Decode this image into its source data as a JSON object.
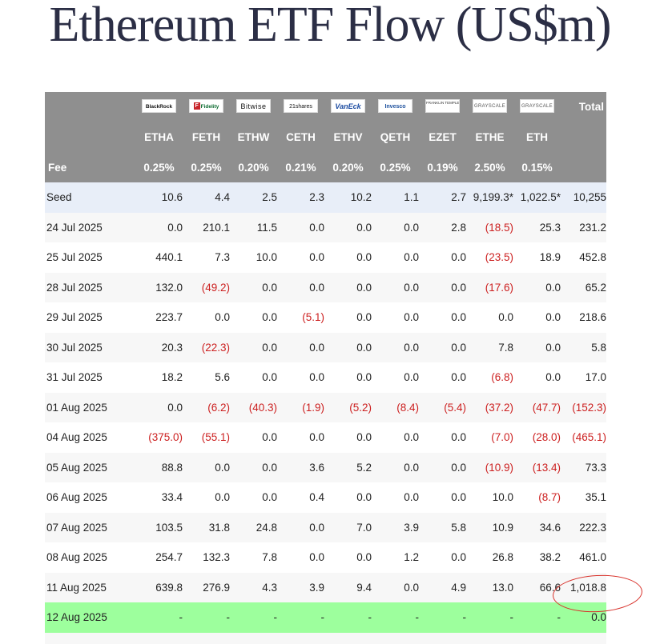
{
  "title": "Ethereum ETF Flow (US$m)",
  "header": {
    "total_label": "Total",
    "fee_label": "Fee",
    "issuers": [
      {
        "logo": "BlackRock",
        "ticker": "ETHA",
        "fee": "0.25%"
      },
      {
        "logo": "Fidelity",
        "ticker": "FETH",
        "fee": "0.25%"
      },
      {
        "logo": "Bitwise",
        "ticker": "ETHW",
        "fee": "0.20%"
      },
      {
        "logo": "21shares",
        "ticker": "CETH",
        "fee": "0.21%"
      },
      {
        "logo": "VanEck",
        "ticker": "ETHV",
        "fee": "0.20%"
      },
      {
        "logo": "Invesco",
        "ticker": "QETH",
        "fee": "0.25%"
      },
      {
        "logo": "FRANKLIN TEMPLETON",
        "ticker": "EZET",
        "fee": "0.19%"
      },
      {
        "logo": "GRAYSCALE",
        "ticker": "ETHE",
        "fee": "2.50%"
      },
      {
        "logo": "GRAYSCALE",
        "ticker": "ETH",
        "fee": "0.15%"
      }
    ]
  },
  "rows": [
    {
      "label": "Seed",
      "values": [
        "10.6",
        "4.4",
        "2.5",
        "2.3",
        "10.2",
        "1.1",
        "2.7",
        "9,199.3*",
        "1,022.5*",
        "10,255"
      ]
    },
    {
      "label": "24 Jul 2025",
      "values": [
        "0.0",
        "210.1",
        "11.5",
        "0.0",
        "0.0",
        "0.0",
        "2.8",
        "(18.5)",
        "25.3",
        "231.2"
      ]
    },
    {
      "label": "25 Jul 2025",
      "values": [
        "440.1",
        "7.3",
        "10.0",
        "0.0",
        "0.0",
        "0.0",
        "0.0",
        "(23.5)",
        "18.9",
        "452.8"
      ]
    },
    {
      "label": "28 Jul 2025",
      "values": [
        "132.0",
        "(49.2)",
        "0.0",
        "0.0",
        "0.0",
        "0.0",
        "0.0",
        "(17.6)",
        "0.0",
        "65.2"
      ]
    },
    {
      "label": "29 Jul 2025",
      "values": [
        "223.7",
        "0.0",
        "0.0",
        "(5.1)",
        "0.0",
        "0.0",
        "0.0",
        "0.0",
        "0.0",
        "218.6"
      ]
    },
    {
      "label": "30 Jul 2025",
      "values": [
        "20.3",
        "(22.3)",
        "0.0",
        "0.0",
        "0.0",
        "0.0",
        "0.0",
        "7.8",
        "0.0",
        "5.8"
      ]
    },
    {
      "label": "31 Jul 2025",
      "values": [
        "18.2",
        "5.6",
        "0.0",
        "0.0",
        "0.0",
        "0.0",
        "0.0",
        "(6.8)",
        "0.0",
        "17.0"
      ]
    },
    {
      "label": "01 Aug 2025",
      "values": [
        "0.0",
        "(6.2)",
        "(40.3)",
        "(1.9)",
        "(5.2)",
        "(8.4)",
        "(5.4)",
        "(37.2)",
        "(47.7)",
        "(152.3)"
      ]
    },
    {
      "label": "04 Aug 2025",
      "values": [
        "(375.0)",
        "(55.1)",
        "0.0",
        "0.0",
        "0.0",
        "0.0",
        "0.0",
        "(7.0)",
        "(28.0)",
        "(465.1)"
      ]
    },
    {
      "label": "05 Aug 2025",
      "values": [
        "88.8",
        "0.0",
        "0.0",
        "3.6",
        "5.2",
        "0.0",
        "0.0",
        "(10.9)",
        "(13.4)",
        "73.3"
      ]
    },
    {
      "label": "06 Aug 2025",
      "values": [
        "33.4",
        "0.0",
        "0.0",
        "0.4",
        "0.0",
        "0.0",
        "0.0",
        "10.0",
        "(8.7)",
        "35.1"
      ]
    },
    {
      "label": "07 Aug 2025",
      "values": [
        "103.5",
        "31.8",
        "24.8",
        "0.0",
        "7.0",
        "3.9",
        "5.8",
        "10.9",
        "34.6",
        "222.3"
      ]
    },
    {
      "label": "08 Aug 2025",
      "values": [
        "254.7",
        "132.3",
        "7.8",
        "0.0",
        "0.0",
        "1.2",
        "0.0",
        "26.8",
        "38.2",
        "461.0"
      ]
    },
    {
      "label": "11 Aug 2025",
      "values": [
        "639.8",
        "276.9",
        "4.3",
        "3.9",
        "9.4",
        "0.0",
        "4.9",
        "13.0",
        "66.6",
        "1,018.8"
      ]
    },
    {
      "label": "12 Aug 2025",
      "values": [
        "-",
        "-",
        "-",
        "-",
        "-",
        "-",
        "-",
        "-",
        "-",
        "0.0"
      ]
    }
  ],
  "colors": {
    "header_bg": "#8f8f8f",
    "negative": "#cc1f1f",
    "seed_row_bg": "#e8eef8",
    "current_row_bg": "#9dff9d",
    "annotation_circle": "#d8312a"
  }
}
